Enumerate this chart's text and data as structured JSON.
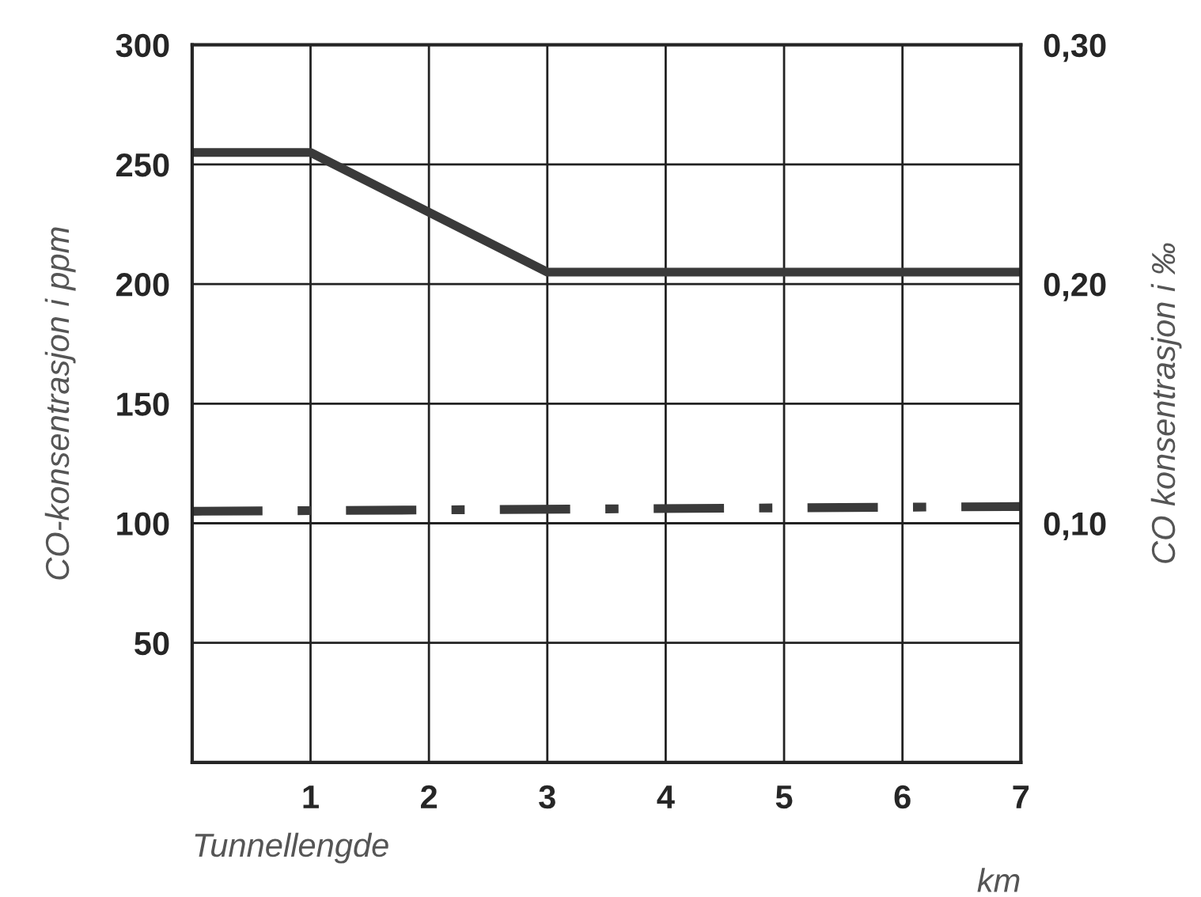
{
  "chart_data": {
    "type": "line",
    "xlabel": "Tunnellengde",
    "ylabel": "CO-konsentrasjon i ppm",
    "y2label": "CO konsentrasjon i ‰",
    "annotations": [
      "km"
    ],
    "series": [
      {
        "color": "#3a3a3a",
        "x": [
          0,
          1,
          3,
          7
        ],
        "values": [
          255,
          255,
          205,
          205
        ],
        "line_style": "solid"
      },
      {
        "color": "#3a3a3a",
        "x": [
          0,
          7
        ],
        "values": [
          105,
          107
        ],
        "line_style": "dashdot"
      }
    ],
    "xlim": [
      0,
      7
    ],
    "xticks": [
      1,
      2,
      3,
      4,
      5,
      6,
      7
    ],
    "ylim": [
      0,
      300
    ],
    "yticks": [
      50,
      100,
      150,
      200,
      250,
      300
    ],
    "y2lim": [
      0,
      0.3
    ],
    "y2ticks": [
      {
        "value": 0.1,
        "label": "0,10"
      },
      {
        "value": 0.2,
        "label": "0,20"
      },
      {
        "value": 0.3,
        "label": "0,30"
      }
    ],
    "grid": true,
    "legend": false,
    "marker": "none"
  }
}
